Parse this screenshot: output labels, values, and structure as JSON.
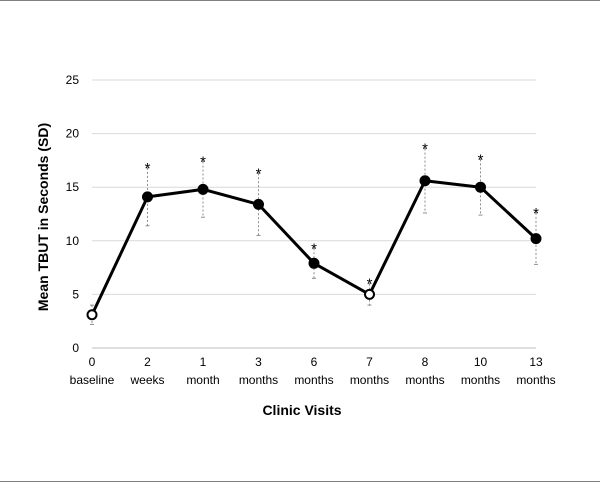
{
  "chart_data": {
    "type": "line",
    "xlabel": "Clinic Visits",
    "ylabel": "Mean TBUT in Seconds (SD)",
    "ylim": [
      0,
      25
    ],
    "yticks": [
      0,
      5,
      10,
      15,
      20,
      25
    ],
    "grid": true,
    "categories": [
      {
        "top": "0",
        "bottom": "baseline"
      },
      {
        "top": "2",
        "bottom": "weeks"
      },
      {
        "top": "1",
        "bottom": "month"
      },
      {
        "top": "3",
        "bottom": "months"
      },
      {
        "top": "6",
        "bottom": "months"
      },
      {
        "top": "7",
        "bottom": "months"
      },
      {
        "top": "8",
        "bottom": "months"
      },
      {
        "top": "10",
        "bottom": "months"
      },
      {
        "top": "13",
        "bottom": "months"
      }
    ],
    "series": [
      {
        "values": [
          3.1,
          14.1,
          14.8,
          13.4,
          7.9,
          5.0,
          15.6,
          15.0,
          10.2
        ],
        "sd": [
          0.9,
          2.7,
          2.6,
          2.9,
          1.4,
          1.0,
          3.0,
          2.6,
          2.4
        ],
        "hollow_markers": [
          true,
          false,
          false,
          false,
          false,
          true,
          false,
          false,
          false
        ],
        "significant": [
          false,
          true,
          true,
          true,
          true,
          true,
          true,
          true,
          true
        ]
      }
    ],
    "significance_marker": "*"
  }
}
